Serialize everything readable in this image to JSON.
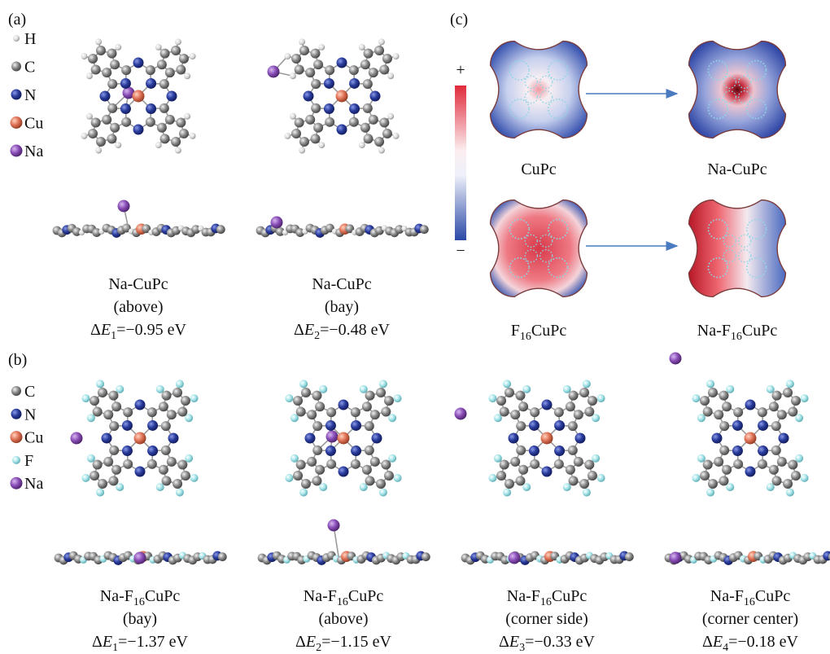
{
  "panel_labels": {
    "a": "(a)",
    "b": "(b)",
    "c": "(c)"
  },
  "legend_a": [
    "H",
    "C",
    "N",
    "Cu",
    "Na"
  ],
  "legend_b": [
    "C",
    "N",
    "Cu",
    "F",
    "Na"
  ],
  "panel_a": [
    {
      "name": {
        "pre": "Na-CuPc"
      },
      "site": "(above)",
      "energy": {
        "delta": "Δ",
        "var": "E",
        "index": "1",
        "value": "=−0.95 eV"
      }
    },
    {
      "name": {
        "pre": "Na-CuPc"
      },
      "site": "(bay)",
      "energy": {
        "delta": "Δ",
        "var": "E",
        "index": "2",
        "value": "=−0.48 eV"
      }
    }
  ],
  "panel_b": [
    {
      "name": {
        "pre": "Na-F",
        "sub": "16",
        "post": "CuPc"
      },
      "site": "(bay)",
      "energy": {
        "delta": "Δ",
        "var": "E",
        "index": "1",
        "value": "=−1.37 eV"
      }
    },
    {
      "name": {
        "pre": "Na-F",
        "sub": "16",
        "post": "CuPc"
      },
      "site": "(above)",
      "energy": {
        "delta": "Δ",
        "var": "E",
        "index": "2",
        "value": "=−1.15 eV"
      }
    },
    {
      "name": {
        "pre": "Na-F",
        "sub": "16",
        "post": "CuPc"
      },
      "site": "(corner side)",
      "energy": {
        "delta": "Δ",
        "var": "E",
        "index": "3",
        "value": "=−0.33 eV"
      }
    },
    {
      "name": {
        "pre": "Na-F",
        "sub": "16",
        "post": "CuPc"
      },
      "site": "(corner center)",
      "energy": {
        "delta": "Δ",
        "var": "E",
        "index": "4",
        "value": "=−0.18 eV"
      }
    }
  ],
  "panel_c": {
    "scale_plus": "+",
    "scale_minus": "−",
    "maps": [
      {
        "name": {
          "pre": "CuPc"
        }
      },
      {
        "name": {
          "pre": "Na-CuPc"
        }
      },
      {
        "name": {
          "pre": "F",
          "sub": "16",
          "post": "CuPc"
        }
      },
      {
        "name": {
          "pre": "Na-F",
          "sub": "16",
          "post": "CuPc"
        }
      }
    ]
  }
}
